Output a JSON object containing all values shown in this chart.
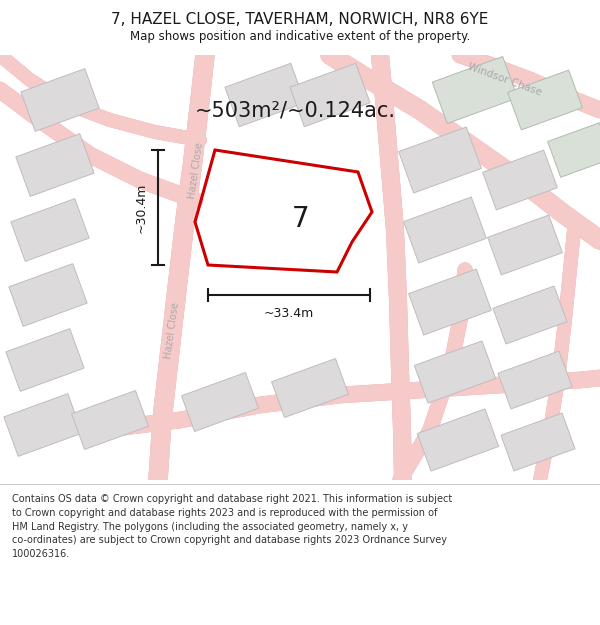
{
  "title": "7, HAZEL CLOSE, TAVERHAM, NORWICH, NR8 6YE",
  "subtitle": "Map shows position and indicative extent of the property.",
  "footer_lines": [
    "Contains OS data © Crown copyright and database right 2021. This information is subject",
    "to Crown copyright and database rights 2023 and is reproduced with the permission of",
    "HM Land Registry. The polygons (including the associated geometry, namely x, y",
    "co-ordinates) are subject to Crown copyright and database rights 2023 Ordnance Survey",
    "100026316."
  ],
  "area_label": "~503m²/~0.124ac.",
  "plot_number": "7",
  "dim_width": "~33.4m",
  "dim_height": "~30.4m",
  "map_bg": "#f0edec",
  "road_fill": "#f7caca",
  "road_stroke": "#e8a8a8",
  "building_fill": "#dcdada",
  "building_stroke": "#c0bcbc",
  "plot_stroke": "#cc0000",
  "plot_fill_alpha": 0.0,
  "street_label_color": "#aaaaaa",
  "dim_color": "#1a1a1a",
  "title_color": "#1a1a1a",
  "footer_color": "#333333",
  "map_border_color": "#bbbbbb"
}
